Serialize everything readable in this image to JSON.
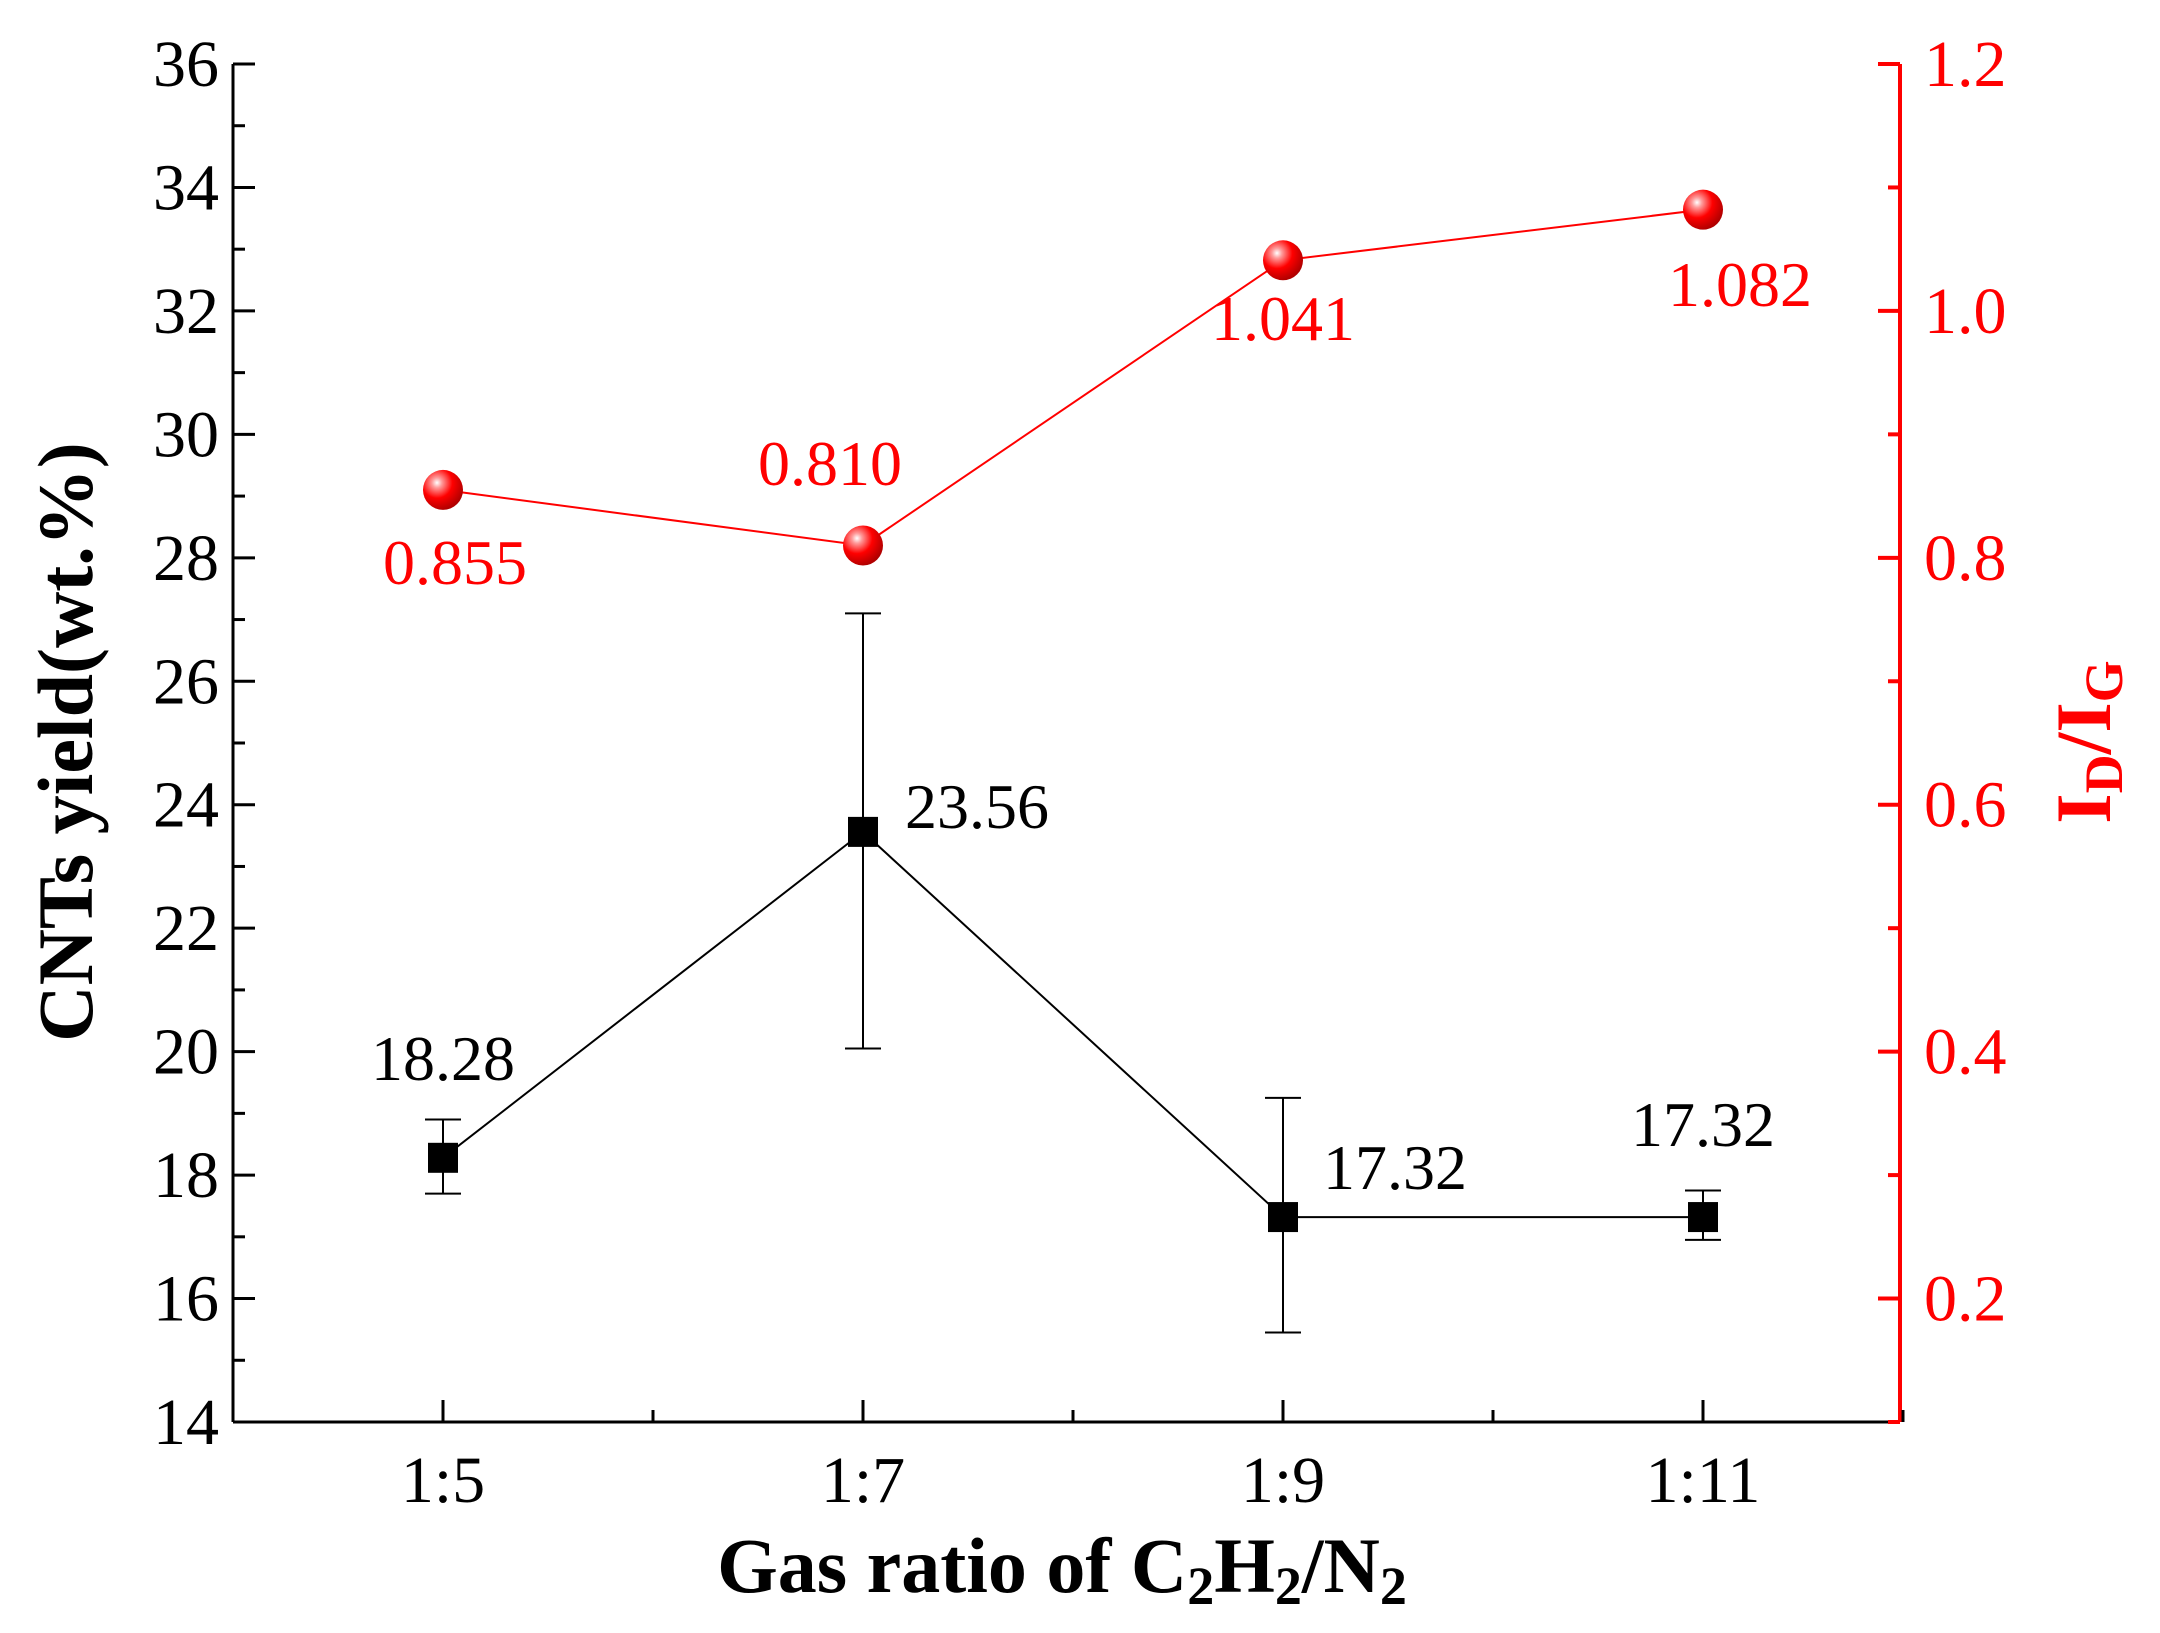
{
  "chart_data": {
    "type": "line",
    "categories": [
      "1:5",
      "1:7",
      "1:9",
      "1:11"
    ],
    "xlabel": {
      "main": "Gas ratio of C",
      "sub1": "2",
      "mid1": "H",
      "sub2": "2",
      "mid2": "/N",
      "sub3": "2"
    },
    "y_left": {
      "label": "CNTs yield(wt.%)",
      "range": [
        14,
        36
      ],
      "ticks": [
        14,
        16,
        18,
        20,
        22,
        24,
        26,
        28,
        30,
        32,
        34,
        36
      ],
      "tick_labels": [
        "14",
        "16",
        "18",
        "20",
        "22",
        "24",
        "26",
        "28",
        "30",
        "32",
        "34",
        "36"
      ],
      "color": "#000000"
    },
    "y_right": {
      "label_main": "I",
      "label_sub1": "D",
      "label_mid": "/I",
      "label_sub2": "G",
      "range": [
        0.1,
        1.2
      ],
      "ticks": [
        0.2,
        0.4,
        0.6,
        0.8,
        1.0,
        1.2
      ],
      "tick_labels": [
        "0.2",
        "0.4",
        "0.6",
        "0.8",
        "1.0",
        "1.2"
      ],
      "color": "#ff0000"
    },
    "series": [
      {
        "axis": "left",
        "marker": "square",
        "color": "#000000",
        "values": [
          18.28,
          23.56,
          17.32,
          17.32
        ],
        "error_low": [
          17.7,
          20.05,
          15.45,
          16.95
        ],
        "error_high": [
          18.9,
          27.1,
          19.25,
          17.75
        ],
        "labels": [
          "18.28",
          "23.56",
          "17.32",
          "17.32"
        ]
      },
      {
        "axis": "right",
        "marker": "sphere",
        "color": "#ff0000",
        "values": [
          0.855,
          0.81,
          1.041,
          1.082
        ],
        "labels": [
          "0.855",
          "0.810",
          "1.041",
          "1.082"
        ]
      }
    ],
    "grid": false,
    "legend": "none"
  }
}
